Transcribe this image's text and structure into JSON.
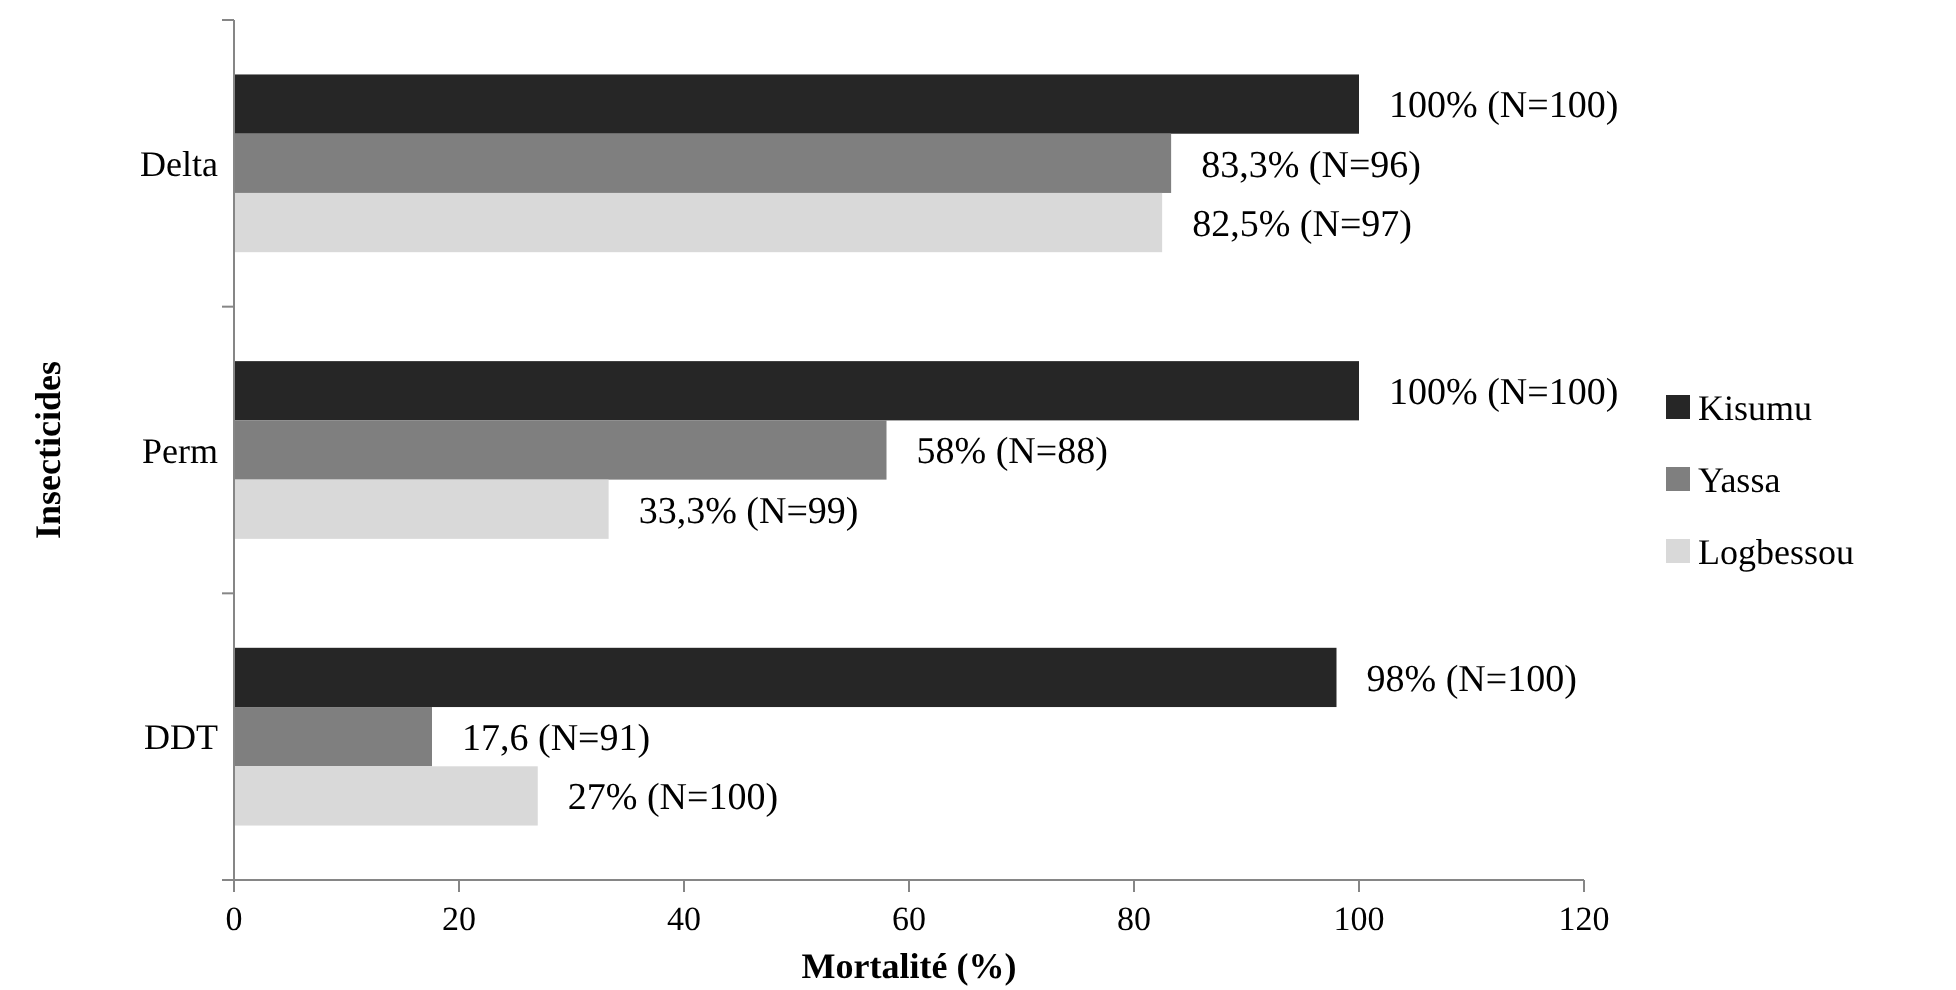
{
  "chart_data": {
    "type": "bar",
    "orientation": "horizontal",
    "xlabel": "Mortalité (%)",
    "ylabel": "Insecticides",
    "categories": [
      "Delta",
      "Perm",
      "DDT"
    ],
    "series": [
      {
        "name": "Kisumu",
        "color": "#262626",
        "values": [
          100,
          100,
          98
        ],
        "value_labels": [
          "100% (N=100)",
          "100% (N=100)",
          "98% (N=100)"
        ]
      },
      {
        "name": "Yassa",
        "color": "#7f7f7f",
        "values": [
          83.3,
          58,
          17.6
        ],
        "value_labels": [
          "83,3% (N=96)",
          "58% (N=88)",
          "17,6 (N=91)"
        ]
      },
      {
        "name": "Logbessou",
        "color": "#d9d9d9",
        "values": [
          82.5,
          33.3,
          27
        ],
        "value_labels": [
          "82,5% (N=97)",
          "33,3% (N=99)",
          "27% (N=100)"
        ]
      }
    ],
    "xlim": [
      0,
      120
    ],
    "xticks": [
      0,
      20,
      40,
      60,
      80,
      100,
      120
    ],
    "grid": false,
    "legend": "right"
  }
}
